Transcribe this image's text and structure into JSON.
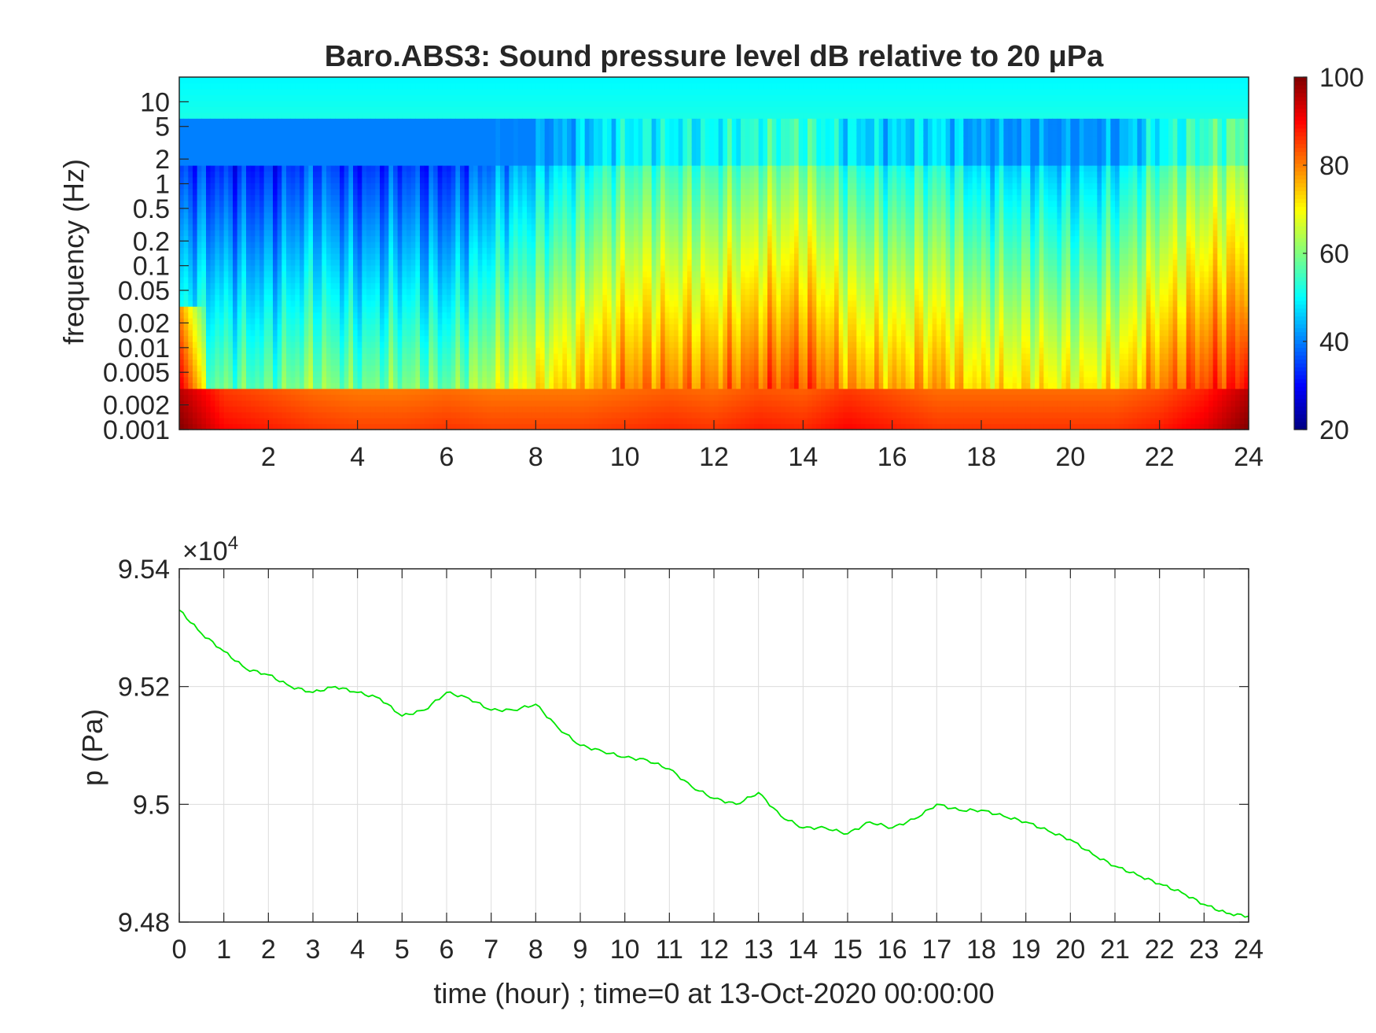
{
  "chart_data": [
    {
      "type": "heatmap",
      "title": "Baro.ABS3: Sound pressure level dB relative to 20 μPa",
      "xlabel": "",
      "ylabel": "frequency (Hz)",
      "x_range": [
        0,
        24
      ],
      "x_ticks": [
        2,
        4,
        6,
        8,
        10,
        12,
        14,
        16,
        18,
        20,
        22,
        24
      ],
      "y_scale": "log",
      "y_range": [
        0.001,
        20
      ],
      "y_ticks": [
        0.001,
        0.002,
        0.005,
        0.01,
        0.02,
        0.05,
        0.1,
        0.2,
        0.5,
        1,
        2,
        5,
        10
      ],
      "y_tick_labels": [
        "0.001",
        "0.002",
        "0.005",
        "0.01",
        "0.02",
        "0.05",
        "0.1",
        "0.2",
        "0.5",
        "1",
        "2",
        "5",
        "10"
      ],
      "colorbar": {
        "colormap": "jet",
        "range": [
          20,
          100
        ],
        "ticks": [
          20,
          40,
          60,
          80,
          100
        ],
        "tick_labels": [
          "20",
          "40",
          "60",
          "80",
          "100"
        ]
      },
      "colormap_stops": [
        "#000080",
        "#0000ff",
        "#00ffff",
        "#ffff00",
        "#ff0000",
        "#800000"
      ],
      "low_freq_profile_db": [
        100,
        90,
        88,
        86,
        85,
        85,
        86,
        85,
        85,
        85,
        86,
        87,
        86,
        88,
        87,
        90,
        88,
        86,
        86,
        86,
        86,
        86,
        88,
        92,
        100
      ],
      "broadband_activity_db": [
        60,
        58,
        57,
        62,
        58,
        60,
        58,
        65,
        70,
        75,
        80,
        80,
        80,
        83,
        85,
        78,
        76,
        78,
        72,
        72,
        70,
        72,
        80,
        85,
        88
      ]
    },
    {
      "type": "line",
      "title": "",
      "xlabel": "time (hour) ; time=0 at 13-Oct-2020 00:00:00",
      "ylabel": "p (Pa)",
      "x_range": [
        0,
        24
      ],
      "x_ticks": [
        0,
        1,
        2,
        3,
        4,
        5,
        6,
        7,
        8,
        9,
        10,
        11,
        12,
        13,
        14,
        15,
        16,
        17,
        18,
        19,
        20,
        21,
        22,
        23,
        24
      ],
      "y_range": [
        94800,
        95400
      ],
      "y_ticks": [
        94800,
        95000,
        95200,
        95400
      ],
      "y_tick_labels": [
        "9.48",
        "9.5",
        "9.52",
        "9.54"
      ],
      "y_exponent_label": "×10",
      "y_exponent_power": "4",
      "grid": true,
      "series": [
        {
          "color": "#00e600",
          "x": [
            0,
            0.5,
            1,
            1.5,
            2,
            2.5,
            3,
            3.5,
            4,
            4.5,
            5,
            5.5,
            6,
            6.5,
            7,
            7.5,
            8,
            8.5,
            9,
            9.5,
            10,
            10.5,
            11,
            11.5,
            12,
            12.5,
            13,
            13.5,
            14,
            14.5,
            15,
            15.5,
            16,
            16.5,
            17,
            17.5,
            18,
            18.5,
            19,
            19.5,
            20,
            20.5,
            21,
            21.5,
            22,
            22.5,
            23,
            23.5,
            24
          ],
          "y": [
            95330,
            95290,
            95260,
            95230,
            95220,
            95200,
            95190,
            95200,
            95190,
            95180,
            95150,
            95160,
            95190,
            95180,
            95160,
            95160,
            95170,
            95130,
            95100,
            95090,
            95080,
            95075,
            95060,
            95030,
            95010,
            95000,
            95020,
            94980,
            94960,
            94960,
            94950,
            94970,
            94960,
            94975,
            95000,
            94990,
            94990,
            94980,
            94970,
            94955,
            94940,
            94915,
            94895,
            94880,
            94865,
            94850,
            94830,
            94815,
            94810
          ]
        }
      ]
    }
  ]
}
